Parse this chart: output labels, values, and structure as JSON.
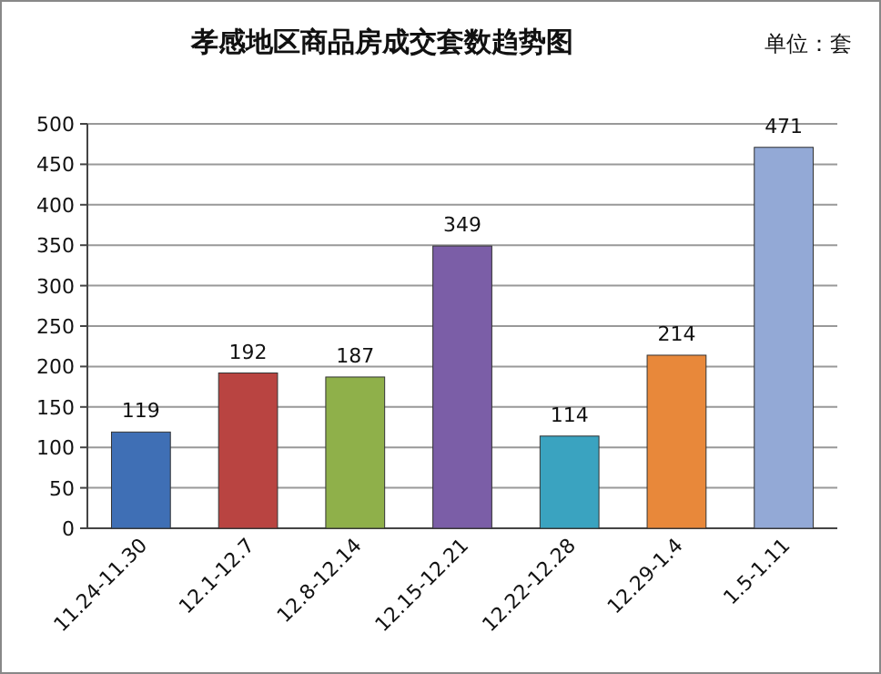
{
  "chart_data": {
    "type": "bar",
    "title": "孝感地区商品房成交套数趋势图",
    "annotations": [
      "单位：套"
    ],
    "categories": [
      "11.24-11.30",
      "12.1-12.7",
      "12.8-12.14",
      "12.15-12.21",
      "12.22-12.28",
      "12.29-1.4",
      "1.5-1.11"
    ],
    "values": [
      119,
      192,
      187,
      349,
      114,
      214,
      471
    ],
    "colors": [
      "#3f6fb5",
      "#b94441",
      "#8fb04a",
      "#7b5ea7",
      "#3aa3c0",
      "#e8883a",
      "#93a9d6"
    ],
    "ylim": [
      0,
      500
    ],
    "yticks": [
      0,
      50,
      100,
      150,
      200,
      250,
      300,
      350,
      400,
      450,
      500
    ],
    "grid": "y",
    "data_labels": true
  }
}
